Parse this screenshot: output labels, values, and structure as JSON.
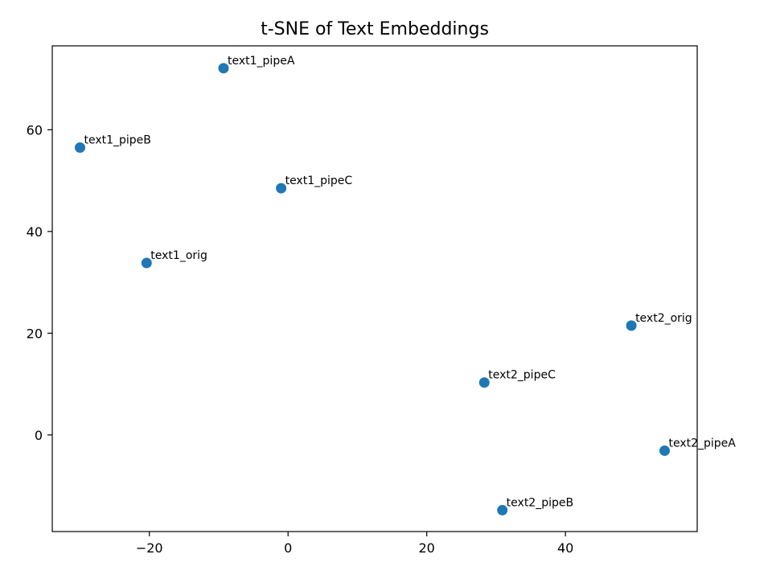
{
  "chart_data": {
    "type": "scatter",
    "title": "t-SNE of Text Embeddings",
    "xlabel": "",
    "ylabel": "",
    "xlim": [
      -34,
      59
    ],
    "ylim": [
      -19,
      76.5
    ],
    "xticks": [
      -20,
      0,
      20,
      40
    ],
    "yticks": [
      0,
      20,
      40,
      60
    ],
    "grid": false,
    "marker_color": "#1f77b4",
    "points": [
      {
        "label": "text1_pipeA",
        "x": -9.3,
        "y": 72.1
      },
      {
        "label": "text1_pipeB",
        "x": -30.0,
        "y": 56.5
      },
      {
        "label": "text1_pipeC",
        "x": -1.0,
        "y": 48.5
      },
      {
        "label": "text1_orig",
        "x": -20.4,
        "y": 33.8
      },
      {
        "label": "text2_orig",
        "x": 49.5,
        "y": 21.5
      },
      {
        "label": "text2_pipeC",
        "x": 28.3,
        "y": 10.3
      },
      {
        "label": "text2_pipeA",
        "x": 54.3,
        "y": -3.1
      },
      {
        "label": "text2_pipeB",
        "x": 30.9,
        "y": -14.8
      }
    ]
  }
}
